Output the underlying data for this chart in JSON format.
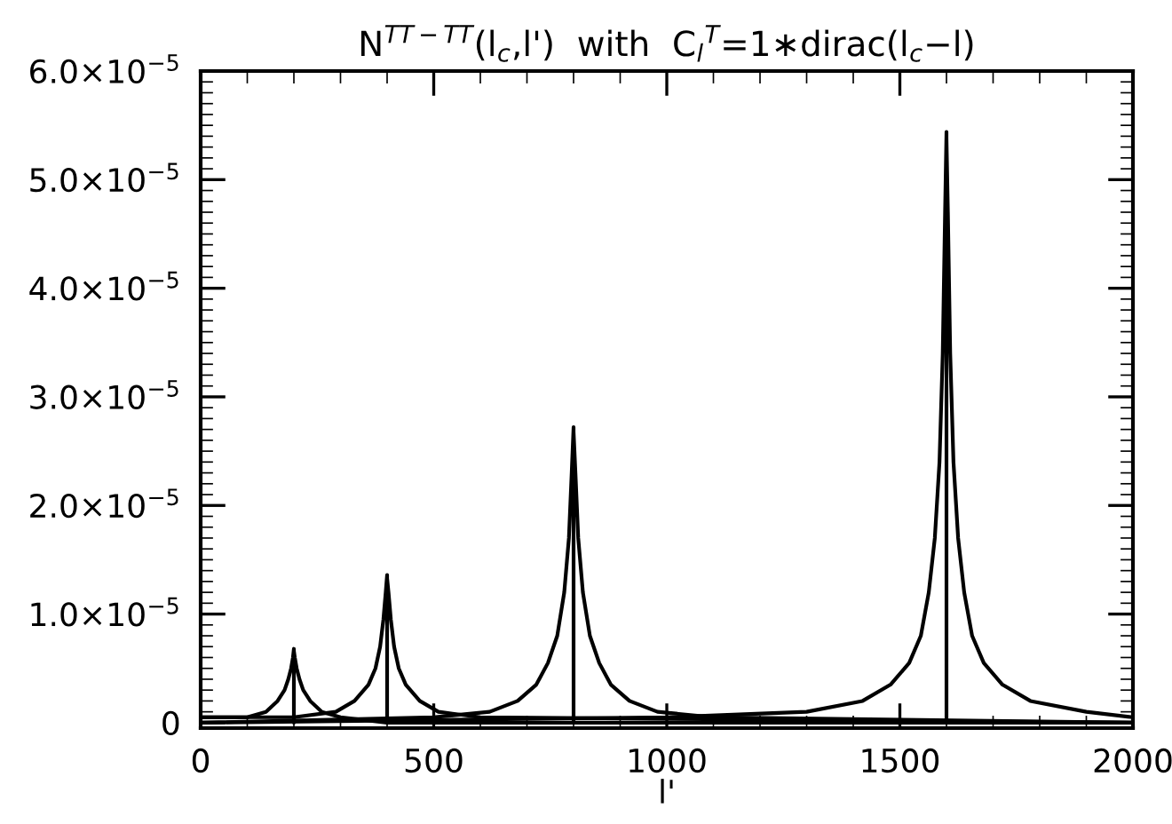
{
  "chart_data": {
    "type": "line",
    "title": "N$^{TT−TT}$(l$_{c}$,l')  with  C$_{l}$$^{T}$=1∗dirac(l$_{c}$−l)",
    "xlabel": "l'",
    "xlim": [
      0,
      2000
    ],
    "xticks": [
      0,
      500,
      1000,
      1500,
      2000
    ],
    "ylim": [
      -5e-07,
      6e-05
    ],
    "yticks": [
      {
        "value": 0,
        "label": "0"
      },
      {
        "value": 1e-05,
        "label": "1.0×10$^{−5}$"
      },
      {
        "value": 2e-05,
        "label": "2.0×10$^{−5}$"
      },
      {
        "value": 3e-05,
        "label": "3.0×10$^{−5}$"
      },
      {
        "value": 4e-05,
        "label": "4.0×10$^{−5}$"
      },
      {
        "value": 5e-05,
        "label": "5.0×10$^{−5}$"
      },
      {
        "value": 6e-05,
        "label": "6.0×10$^{−5}$"
      }
    ],
    "grid": false,
    "marker": "none",
    "line_style": "solid",
    "series": [
      {
        "color": "#000000",
        "x": [
          0,
          100,
          140,
          165,
          180,
          188,
          194,
          198,
          200,
          200,
          200,
          202,
          206,
          212,
          220,
          235,
          260,
          300,
          400,
          2000
        ],
        "values": [
          5e-07,
          5e-07,
          1e-06,
          2e-06,
          3e-06,
          4e-06,
          5e-06,
          6e-06,
          6.8e-06,
          0,
          6.6e-06,
          6e-06,
          5e-06,
          4e-06,
          3e-06,
          2e-06,
          1e-06,
          5e-07,
          0,
          0
        ]
      },
      {
        "color": "#000000",
        "x": [
          0,
          200,
          290,
          330,
          360,
          375,
          385,
          392,
          397,
          400,
          400,
          400,
          403,
          408,
          415,
          425,
          440,
          470,
          510,
          600,
          2000
        ],
        "values": [
          5e-07,
          5e-07,
          1e-06,
          2e-06,
          3.5e-06,
          5e-06,
          7e-06,
          9.5e-06,
          1.2e-05,
          1.36e-05,
          0,
          1.33e-05,
          1.2e-05,
          9.5e-06,
          7e-06,
          5e-06,
          3.5e-06,
          2e-06,
          1e-06,
          5e-07,
          0
        ]
      },
      {
        "color": "#000000",
        "x": [
          0,
          500,
          620,
          680,
          720,
          745,
          765,
          780,
          790,
          796,
          800,
          800,
          800,
          804,
          810,
          820,
          835,
          855,
          880,
          920,
          980,
          1100,
          2000
        ],
        "values": [
          0,
          5e-07,
          1e-06,
          2e-06,
          3.5e-06,
          5.5e-06,
          8e-06,
          1.2e-05,
          1.7e-05,
          2.3e-05,
          2.72e-05,
          0,
          2.68e-05,
          2.3e-05,
          1.7e-05,
          1.2e-05,
          8e-06,
          5.5e-06,
          3.5e-06,
          2e-06,
          1e-06,
          5e-07,
          0
        ]
      },
      {
        "color": "#000000",
        "x": [
          0,
          1000,
          1300,
          1420,
          1480,
          1520,
          1545,
          1562,
          1575,
          1585,
          1592,
          1597,
          1600,
          1600,
          1600,
          1603,
          1608,
          1615,
          1625,
          1638,
          1655,
          1680,
          1720,
          1780,
          1900,
          2000
        ],
        "values": [
          0,
          5e-07,
          1e-06,
          2e-06,
          3.5e-06,
          5.5e-06,
          8e-06,
          1.2e-05,
          1.7e-05,
          2.4e-05,
          3.4e-05,
          4.7e-05,
          5.44e-05,
          0,
          5.38e-05,
          4.7e-05,
          3.4e-05,
          2.4e-05,
          1.7e-05,
          1.2e-05,
          8e-06,
          5.5e-06,
          3.5e-06,
          2e-06,
          1e-06,
          5e-07
        ]
      }
    ]
  }
}
